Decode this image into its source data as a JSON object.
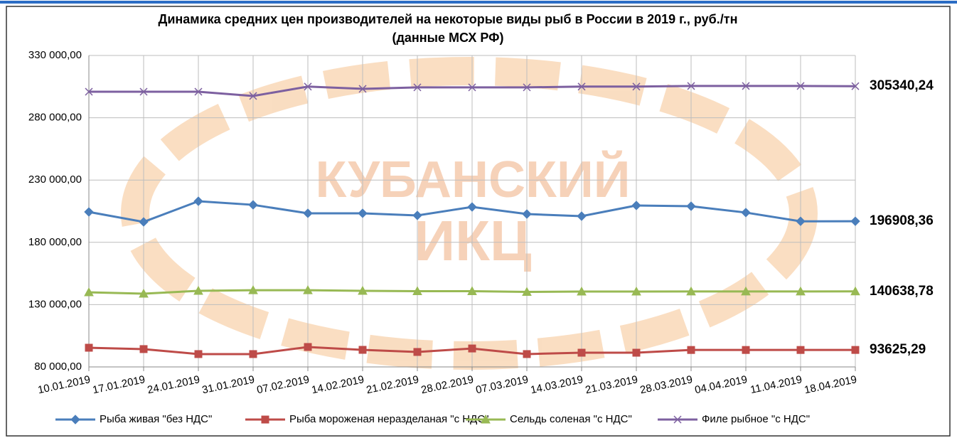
{
  "chart_data": {
    "type": "line",
    "title": [
      "Динамика средних цен производителей на некоторые виды рыб в России в 2019 г., руб./тн",
      "(данные МСХ РФ)"
    ],
    "watermark": [
      "КУБАНСКИЙ",
      "ИКЦ"
    ],
    "categories": [
      "10.01.2019",
      "17.01.2019",
      "24.01.2019",
      "31.01.2019",
      "07.02.2019",
      "14.02.2019",
      "21.02.2019",
      "28.02.2019",
      "07.03.2019",
      "14.03.2019",
      "21.03.2019",
      "28.03.2019",
      "04.04.2019",
      "11.04.2019",
      "18.04.2019"
    ],
    "series": [
      {
        "name": "Рыба живая \"без НДС\"",
        "color": "#4a7ebb",
        "marker": "diamond",
        "values": [
          204400,
          196400,
          213000,
          210100,
          203300,
          203300,
          201600,
          208400,
          202700,
          201000,
          209600,
          209000,
          203900,
          196900,
          196908.36
        ],
        "value_labels": [
          null,
          null,
          null,
          null,
          null,
          null,
          null,
          null,
          null,
          null,
          null,
          null,
          null,
          null,
          "196908,36"
        ]
      },
      {
        "name": "Рыба мороженая неразделаная \"с НДС\"",
        "color": "#be4b48",
        "marker": "square",
        "values": [
          95400,
          94300,
          90300,
          90300,
          96000,
          93700,
          92000,
          94800,
          90300,
          91400,
          91400,
          93600,
          93600,
          93600,
          93625.29
        ],
        "value_labels": [
          null,
          null,
          null,
          null,
          null,
          null,
          null,
          null,
          null,
          null,
          null,
          null,
          null,
          null,
          "93625,29"
        ]
      },
      {
        "name": "Сельдь соленая \"с НДС\"",
        "color": "#98b954",
        "marker": "triangle",
        "values": [
          139900,
          138800,
          141100,
          141600,
          141600,
          141100,
          140800,
          140800,
          140200,
          140500,
          140500,
          140600,
          140600,
          140600,
          140638.78
        ],
        "value_labels": [
          null,
          null,
          null,
          null,
          null,
          null,
          null,
          null,
          null,
          null,
          null,
          null,
          null,
          null,
          "140638,78"
        ]
      },
      {
        "name": "Филе рыбное \"с НДС\"",
        "color": "#7d60a0",
        "marker": "x",
        "values": [
          300900,
          300900,
          300900,
          297500,
          305000,
          303200,
          304400,
          304400,
          304400,
          305000,
          305000,
          305500,
          305500,
          305500,
          305340.24
        ],
        "value_labels": [
          null,
          null,
          null,
          null,
          null,
          null,
          null,
          null,
          null,
          null,
          null,
          null,
          null,
          null,
          "305340,24"
        ]
      }
    ],
    "ylim": [
      80000,
      330000
    ],
    "yticks": [
      {
        "value": 80000,
        "label": "80 000,00"
      },
      {
        "value": 130000,
        "label": "130 000,00"
      },
      {
        "value": 180000,
        "label": "180 000,00"
      },
      {
        "value": 230000,
        "label": "230 000,00"
      },
      {
        "value": 280000,
        "label": "280 000,00"
      },
      {
        "value": 330000,
        "label": "330 000,00"
      }
    ],
    "grid": true,
    "legend": "bottom"
  }
}
